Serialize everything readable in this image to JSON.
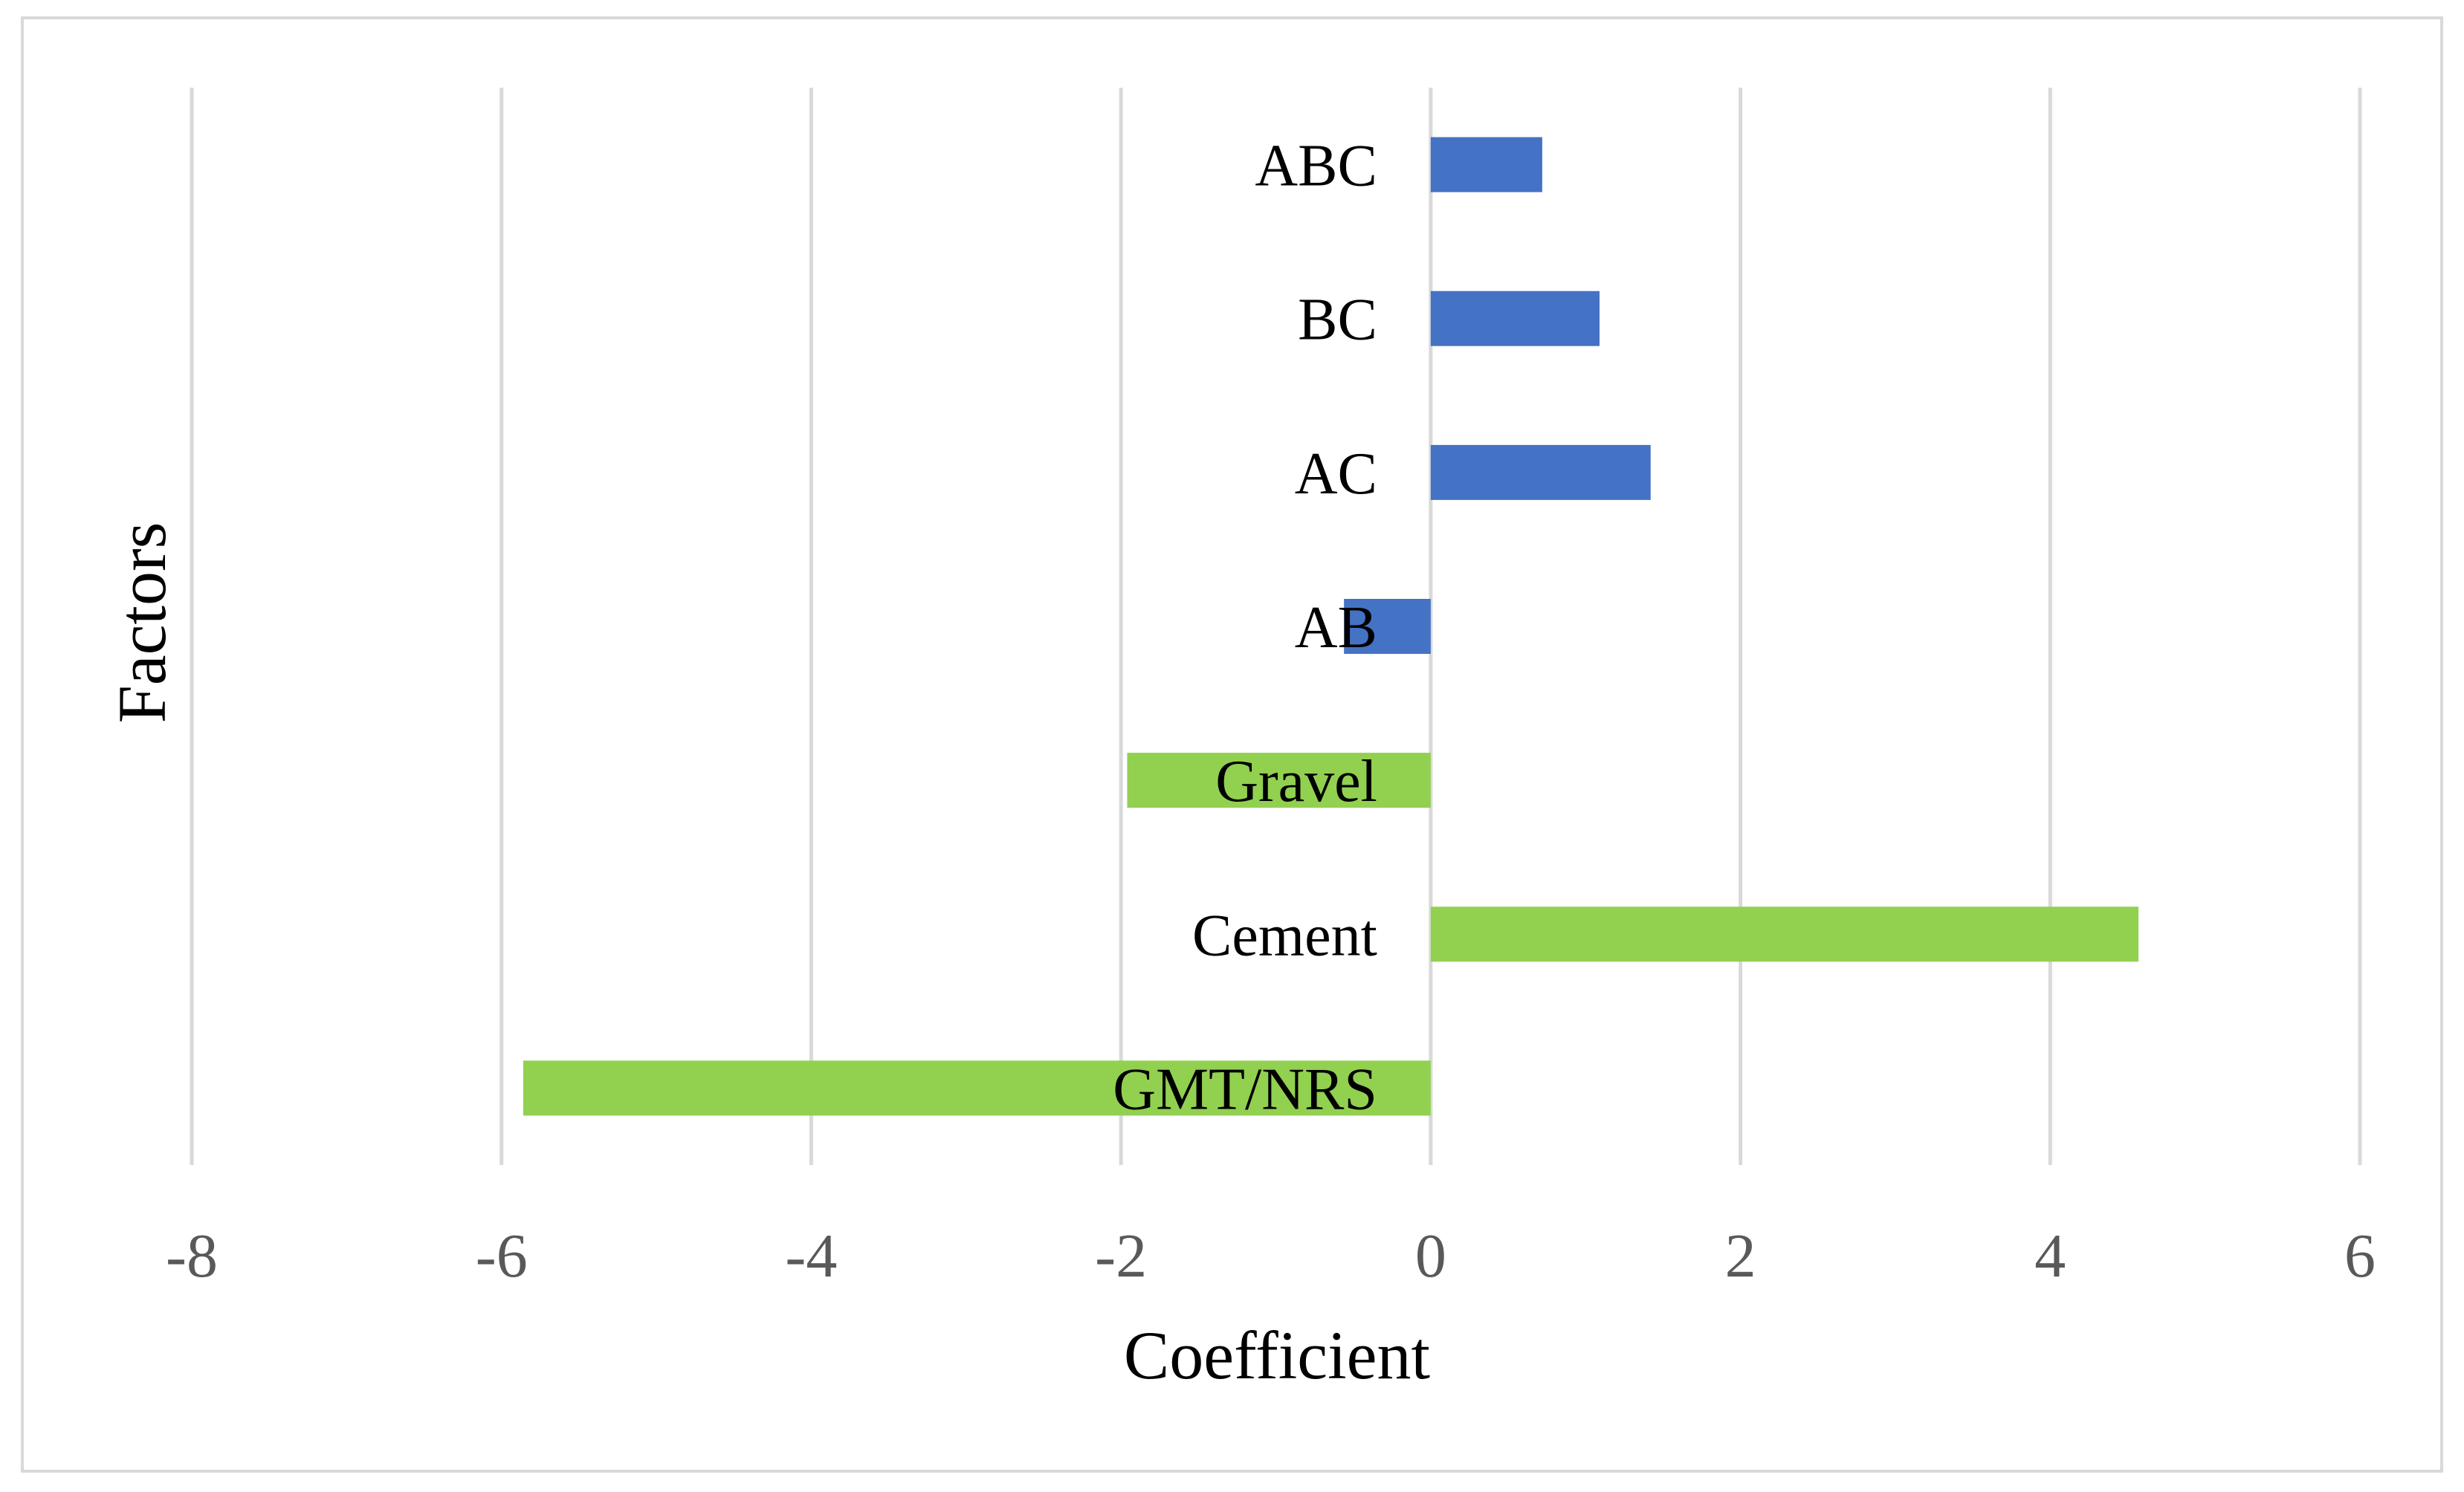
{
  "chart_data": {
    "type": "bar",
    "orientation": "horizontal",
    "xlabel": "Coefficient",
    "ylabel": "Factors",
    "xlim": [
      -8,
      6
    ],
    "xticks": [
      "-8",
      "-6",
      "-4",
      "-2",
      "0",
      "2",
      "4",
      "6"
    ],
    "grid": true,
    "legend": "none",
    "categories": [
      "ABC",
      "BC",
      "AC",
      "AB",
      "Gravel",
      "Cement",
      "GMT/NRS"
    ],
    "values": [
      0.72,
      1.09,
      1.42,
      -0.56,
      -1.96,
      4.57,
      -5.86
    ],
    "colors": [
      "#4472c4",
      "#4472c4",
      "#4472c4",
      "#4472c4",
      "#92d050",
      "#92d050",
      "#92d050"
    ]
  }
}
